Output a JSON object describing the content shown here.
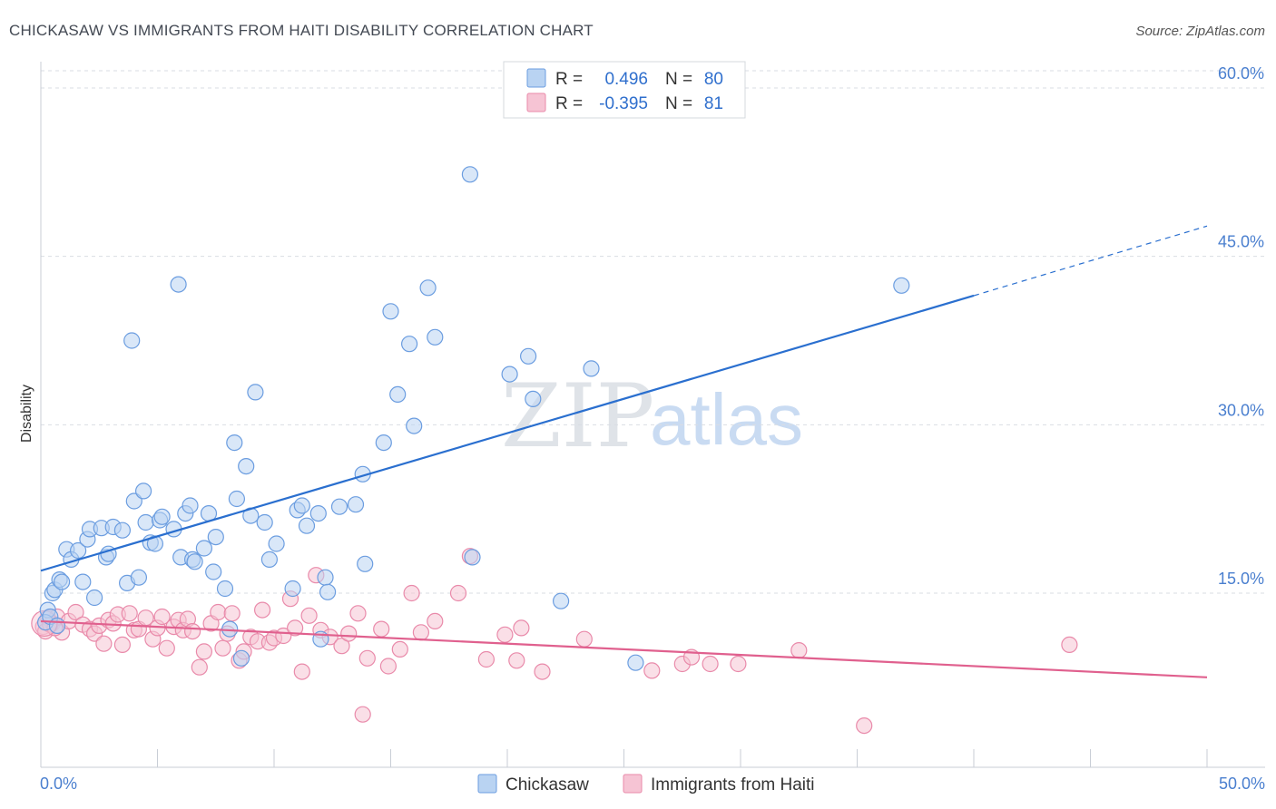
{
  "title": "CHICKASAW VS IMMIGRANTS FROM HAITI DISABILITY CORRELATION CHART",
  "source": "Source: ZipAtlas.com",
  "watermark": {
    "part1": "ZIP",
    "part2": "atlas"
  },
  "legend_top": [
    {
      "r_label": "R =",
      "r_value": "0.496",
      "n_label": "N =",
      "n_value": "80"
    },
    {
      "r_label": "R =",
      "r_value": "-0.395",
      "n_label": "N =",
      "n_value": "81"
    }
  ],
  "legend_bottom": [
    "Chickasaw",
    "Immigrants from Haiti"
  ],
  "colors": {
    "blue_fill": "#b9d3f2",
    "blue_stroke": "#6b9de0",
    "blue_line": "#2a6fcf",
    "pink_fill": "#f6c4d4",
    "pink_stroke": "#e98aaa",
    "pink_line": "#e0608e",
    "grid": "#d9dde3",
    "tick_text": "#4a7fcf"
  },
  "chart_data": {
    "type": "scatter",
    "title": "CHICKASAW VS IMMIGRANTS FROM HAITI DISABILITY CORRELATION CHART",
    "xlabel": "",
    "ylabel": "Disability",
    "xlim": [
      0,
      50
    ],
    "ylim": [
      0,
      62
    ],
    "x_tick_labels": [
      "0.0%",
      "50.0%"
    ],
    "y_ticks": [
      15,
      30,
      45,
      60
    ],
    "y_tick_labels": [
      "15.0%",
      "30.0%",
      "45.0%",
      "60.0%"
    ],
    "grid": true,
    "legend_position": "top-center",
    "series": [
      {
        "name": "Chickasaw",
        "r": 0.496,
        "n": 80,
        "trend": {
          "x0": 0,
          "y0": 17.0,
          "x1": 40,
          "y1": 41.5,
          "dashed_to_x": 50,
          "dashed_to_y": 47.7
        },
        "points": [
          [
            0.3,
            13.5
          ],
          [
            0.5,
            15.0
          ],
          [
            0.6,
            15.3
          ],
          [
            0.8,
            16.2
          ],
          [
            0.9,
            16.0
          ],
          [
            1.1,
            18.9
          ],
          [
            1.3,
            18.0
          ],
          [
            1.6,
            18.8
          ],
          [
            1.8,
            16.0
          ],
          [
            2.0,
            19.8
          ],
          [
            2.1,
            20.7
          ],
          [
            2.3,
            14.6
          ],
          [
            2.6,
            20.8
          ],
          [
            2.8,
            18.2
          ],
          [
            2.9,
            18.5
          ],
          [
            3.1,
            20.9
          ],
          [
            3.5,
            20.6
          ],
          [
            3.7,
            15.9
          ],
          [
            3.9,
            37.5
          ],
          [
            4.0,
            23.2
          ],
          [
            4.2,
            16.4
          ],
          [
            4.4,
            24.1
          ],
          [
            4.5,
            21.3
          ],
          [
            4.7,
            19.5
          ],
          [
            4.9,
            19.4
          ],
          [
            5.1,
            21.5
          ],
          [
            5.2,
            21.8
          ],
          [
            5.7,
            20.7
          ],
          [
            5.9,
            42.5
          ],
          [
            6.0,
            18.2
          ],
          [
            6.2,
            22.1
          ],
          [
            6.4,
            22.8
          ],
          [
            6.5,
            18.0
          ],
          [
            6.6,
            17.8
          ],
          [
            7.0,
            19.0
          ],
          [
            7.2,
            22.1
          ],
          [
            7.4,
            16.9
          ],
          [
            7.5,
            20.0
          ],
          [
            7.9,
            15.4
          ],
          [
            8.1,
            11.8
          ],
          [
            8.3,
            28.4
          ],
          [
            8.4,
            23.4
          ],
          [
            8.6,
            9.2
          ],
          [
            8.8,
            26.3
          ],
          [
            9.0,
            21.9
          ],
          [
            9.2,
            32.9
          ],
          [
            9.6,
            21.3
          ],
          [
            9.8,
            18.0
          ],
          [
            10.1,
            19.4
          ],
          [
            10.8,
            15.4
          ],
          [
            11.0,
            22.4
          ],
          [
            11.2,
            22.8
          ],
          [
            11.4,
            21.0
          ],
          [
            11.9,
            22.1
          ],
          [
            12.0,
            10.9
          ],
          [
            12.2,
            16.4
          ],
          [
            12.3,
            15.1
          ],
          [
            12.8,
            22.7
          ],
          [
            13.5,
            22.9
          ],
          [
            13.8,
            25.6
          ],
          [
            13.9,
            17.6
          ],
          [
            14.7,
            28.4
          ],
          [
            15.0,
            40.1
          ],
          [
            15.3,
            32.7
          ],
          [
            15.8,
            37.2
          ],
          [
            16.0,
            29.9
          ],
          [
            16.6,
            42.2
          ],
          [
            16.9,
            37.8
          ],
          [
            18.4,
            52.3
          ],
          [
            18.5,
            18.2
          ],
          [
            20.1,
            34.5
          ],
          [
            20.9,
            36.1
          ],
          [
            21.1,
            32.3
          ],
          [
            22.3,
            14.3
          ],
          [
            23.6,
            35.0
          ],
          [
            25.5,
            8.8
          ],
          [
            36.9,
            42.4
          ],
          [
            0.2,
            12.4
          ],
          [
            0.4,
            12.9
          ],
          [
            0.7,
            12.1
          ]
        ]
      },
      {
        "name": "Immigrants from Haiti",
        "r": -0.395,
        "n": 81,
        "trend": {
          "x0": 0,
          "y0": 12.5,
          "x1": 50,
          "y1": 7.5
        },
        "points": [
          [
            0.1,
            12.0
          ],
          [
            0.3,
            12.8
          ],
          [
            0.5,
            12.3
          ],
          [
            0.7,
            12.9
          ],
          [
            0.9,
            11.5
          ],
          [
            1.2,
            12.5
          ],
          [
            1.5,
            13.3
          ],
          [
            1.8,
            12.2
          ],
          [
            2.1,
            11.8
          ],
          [
            2.3,
            11.4
          ],
          [
            2.5,
            12.1
          ],
          [
            2.7,
            10.5
          ],
          [
            2.9,
            12.6
          ],
          [
            3.1,
            12.3
          ],
          [
            3.3,
            13.1
          ],
          [
            3.5,
            10.4
          ],
          [
            3.8,
            13.2
          ],
          [
            4.0,
            11.7
          ],
          [
            4.2,
            11.8
          ],
          [
            4.5,
            12.8
          ],
          [
            4.8,
            10.9
          ],
          [
            5.0,
            11.9
          ],
          [
            5.2,
            12.9
          ],
          [
            5.4,
            10.1
          ],
          [
            5.7,
            12.0
          ],
          [
            5.9,
            12.6
          ],
          [
            6.1,
            11.7
          ],
          [
            6.3,
            12.7
          ],
          [
            6.5,
            11.6
          ],
          [
            6.8,
            8.4
          ],
          [
            7.0,
            9.8
          ],
          [
            7.3,
            12.3
          ],
          [
            7.6,
            13.3
          ],
          [
            7.8,
            10.1
          ],
          [
            8.0,
            11.4
          ],
          [
            8.2,
            13.2
          ],
          [
            8.5,
            9.0
          ],
          [
            8.7,
            9.8
          ],
          [
            9.0,
            11.1
          ],
          [
            9.3,
            10.7
          ],
          [
            9.5,
            13.5
          ],
          [
            9.8,
            10.6
          ],
          [
            10.0,
            11.0
          ],
          [
            10.4,
            11.2
          ],
          [
            10.7,
            14.5
          ],
          [
            10.9,
            11.9
          ],
          [
            11.2,
            8.0
          ],
          [
            11.5,
            13.0
          ],
          [
            11.8,
            16.6
          ],
          [
            12.0,
            11.7
          ],
          [
            12.4,
            11.1
          ],
          [
            12.9,
            10.3
          ],
          [
            13.2,
            11.4
          ],
          [
            13.6,
            13.2
          ],
          [
            13.8,
            4.2
          ],
          [
            14.0,
            9.2
          ],
          [
            14.6,
            11.8
          ],
          [
            14.9,
            8.5
          ],
          [
            15.4,
            10.0
          ],
          [
            15.9,
            15.0
          ],
          [
            16.3,
            11.5
          ],
          [
            16.9,
            12.5
          ],
          [
            17.9,
            15.0
          ],
          [
            18.4,
            18.3
          ],
          [
            19.1,
            9.1
          ],
          [
            19.9,
            11.3
          ],
          [
            20.4,
            9.0
          ],
          [
            20.6,
            11.9
          ],
          [
            21.5,
            8.0
          ],
          [
            23.3,
            10.9
          ],
          [
            26.2,
            8.1
          ],
          [
            27.5,
            8.7
          ],
          [
            27.9,
            9.3
          ],
          [
            28.7,
            8.7
          ],
          [
            29.9,
            8.7
          ],
          [
            32.5,
            9.9
          ],
          [
            35.3,
            3.2
          ],
          [
            44.1,
            10.4
          ],
          [
            0.2,
            11.6
          ],
          [
            0.4,
            12.2
          ],
          [
            0.6,
            11.9
          ]
        ]
      }
    ]
  }
}
